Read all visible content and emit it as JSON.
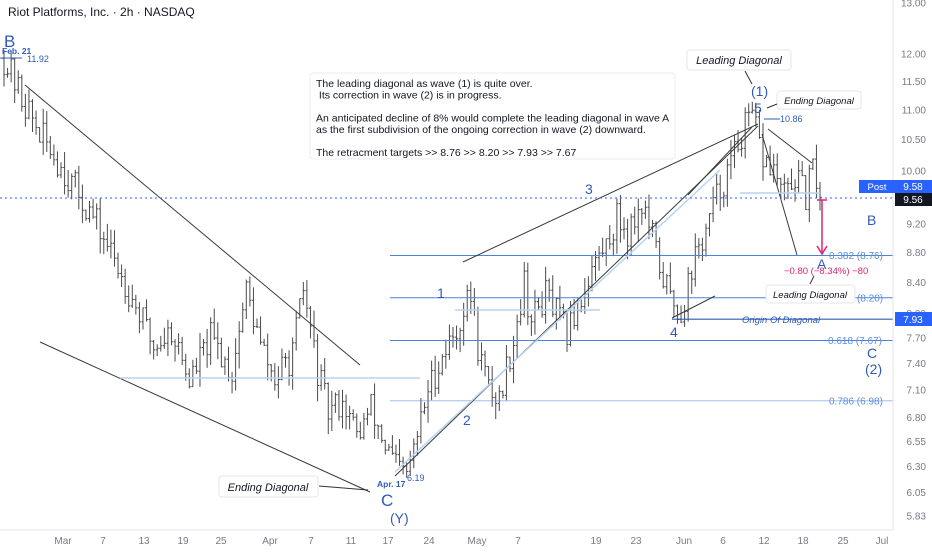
{
  "header": {
    "title": "Riot Platforms, Inc. · 2h · NASDAQ"
  },
  "colors": {
    "candle": "#4a4a4a",
    "trendline": "#3a3a3a",
    "wave": "#2f5bb7",
    "fib": "#4d82d8",
    "faint": "#b7d4f2",
    "price_tag": "#2962ff",
    "dark_tag": "#131722",
    "drawdown": "#e0226b"
  },
  "axes": {
    "y_ticks": [
      "13.00",
      "12.00",
      "11.50",
      "11.00",
      "10.50",
      "10.00",
      "9.60",
      "9.20",
      "8.80",
      "8.40",
      "8.00",
      "7.70",
      "7.40",
      "7.10",
      "6.80",
      "6.55",
      "6.30",
      "6.05",
      "5.83"
    ],
    "x_ticks": [
      "Mar",
      "7",
      "13",
      "19",
      "25",
      "Apr",
      "7",
      "11",
      "17",
      "24",
      "May",
      "7",
      "19",
      "23",
      "Jun",
      "6",
      "12",
      "18",
      "25",
      "Jul"
    ]
  },
  "price_tags": {
    "post_label": "Post",
    "post": "9.58",
    "last": "9.56",
    "origin": "7.93"
  },
  "fib_levels": [
    {
      "label": "0.382 (8.76)",
      "value": 8.76
    },
    {
      "label": "(8.20)",
      "value": 8.2
    },
    {
      "label": "0.618 (7.67)",
      "value": 7.67
    },
    {
      "label": "0.786 (6.98)",
      "value": 6.98
    }
  ],
  "origin_label": "Origin Of Diagonal",
  "drawdown_label": "−0.80 (−8.34%) −80",
  "annotations": {
    "b_top": "B",
    "feb21": "Feb. 21",
    "high_1192": "11.92",
    "apr17": "Apr. 17",
    "low_619": "6.19",
    "c_low": "C",
    "y_low": "(Y)",
    "w1": "1",
    "w2": "2",
    "w3": "3",
    "w4": "4",
    "w5": "5",
    "w1p": "(1)",
    "high_1086": "10.86",
    "a_right": "A",
    "b_right": "B",
    "c_right": "C",
    "w2p": "(2)"
  },
  "callouts": {
    "leading_top": "Leading Diagonal",
    "ending_right": "Ending Diagonal",
    "leading_bottom": "Leading Diagonal",
    "ending_left": "Ending Diagonal"
  },
  "note": [
    "The leading diagonal as wave (1) is quite over.",
    " Its correction in wave (2) is in progress.",
    "",
    "An anticipated decline of 8% would complete the leading diagonal in wave A",
    "as the first subdivision of the ongoing correction in wave (2) downward.",
    "",
    "The retracment targets >>  8.76  >> 8.20  >>  7.93  >>  7.67"
  ],
  "chart_data": {
    "type": "candlestick",
    "title": "Riot Platforms, Inc. · 2h · NASDAQ",
    "y_scale": "log",
    "ylim": [
      5.83,
      13.0
    ],
    "x_range": [
      "Feb 21",
      "Jul"
    ],
    "swing_points": [
      {
        "label": "B",
        "date": "Feb 21",
        "value": 11.92
      },
      {
        "label": "C (Y)",
        "date": "Apr 17",
        "value": 6.19
      },
      {
        "label": "1",
        "date": "May 2",
        "value": 8.2
      },
      {
        "label": "2",
        "date": "May 8",
        "value": 6.95
      },
      {
        "label": "3",
        "date": "May 20",
        "value": 9.45
      },
      {
        "label": "4",
        "date": "May 31",
        "value": 7.95
      },
      {
        "label": "5 (1)",
        "date": "Jun 11",
        "value": 10.86
      },
      {
        "label": "A",
        "date": "Jun 21",
        "value": 8.76
      }
    ],
    "last_price": 9.56,
    "post_price": 9.58,
    "retracement_targets": [
      8.76,
      8.2,
      7.93,
      7.67
    ],
    "fib_levels": [
      {
        "ratio": 0.382,
        "value": 8.76
      },
      {
        "ratio": 0.618,
        "value": 7.67
      },
      {
        "ratio": 0.786,
        "value": 6.98
      }
    ],
    "projected_move": {
      "change": -0.8,
      "percent": -8.34
    },
    "series": [
      {
        "waypoints": [
          [
            11.92,
            0
          ],
          [
            11.2,
            5
          ],
          [
            10.6,
            10
          ],
          [
            9.9,
            18
          ],
          [
            9.3,
            25
          ],
          [
            8.6,
            32
          ],
          [
            8.0,
            38
          ],
          [
            7.6,
            42
          ],
          [
            7.8,
            47
          ],
          [
            7.2,
            52
          ],
          [
            7.7,
            58
          ],
          [
            7.3,
            64
          ],
          [
            8.3,
            68
          ],
          [
            7.6,
            72
          ],
          [
            7.2,
            76
          ],
          [
            7.5,
            81
          ],
          [
            8.3,
            84
          ],
          [
            7.3,
            88
          ],
          [
            6.85,
            91
          ],
          [
            7.0,
            95
          ],
          [
            6.6,
            99
          ],
          [
            6.9,
            103
          ],
          [
            6.5,
            107
          ],
          [
            6.3,
            110
          ],
          [
            6.2,
            113
          ],
          [
            6.6,
            116
          ],
          [
            7.1,
            119
          ],
          [
            7.5,
            123
          ],
          [
            7.8,
            127
          ],
          [
            8.25,
            131
          ],
          [
            7.6,
            133
          ],
          [
            7.1,
            136
          ],
          [
            7.0,
            139
          ],
          [
            7.7,
            143
          ],
          [
            8.4,
            146
          ],
          [
            7.9,
            148
          ],
          [
            8.25,
            152
          ],
          [
            8.0,
            155
          ],
          [
            7.75,
            158
          ],
          [
            8.2,
            162
          ],
          [
            8.6,
            165
          ],
          [
            8.9,
            169
          ],
          [
            9.3,
            172
          ],
          [
            9.1,
            175
          ],
          [
            9.5,
            179
          ],
          [
            9.0,
            182
          ],
          [
            8.6,
            184
          ],
          [
            8.2,
            187
          ],
          [
            8.0,
            190
          ],
          [
            8.6,
            193
          ],
          [
            9.1,
            197
          ],
          [
            9.6,
            200
          ],
          [
            10.1,
            204
          ],
          [
            10.6,
            207
          ],
          [
            10.86,
            210
          ],
          [
            10.2,
            213
          ],
          [
            10.0,
            216
          ],
          [
            9.6,
            219
          ],
          [
            9.9,
            222
          ],
          [
            9.6,
            225
          ],
          [
            10.0,
            227
          ],
          [
            9.56,
            230
          ]
        ],
        "points": 230
      }
    ]
  }
}
